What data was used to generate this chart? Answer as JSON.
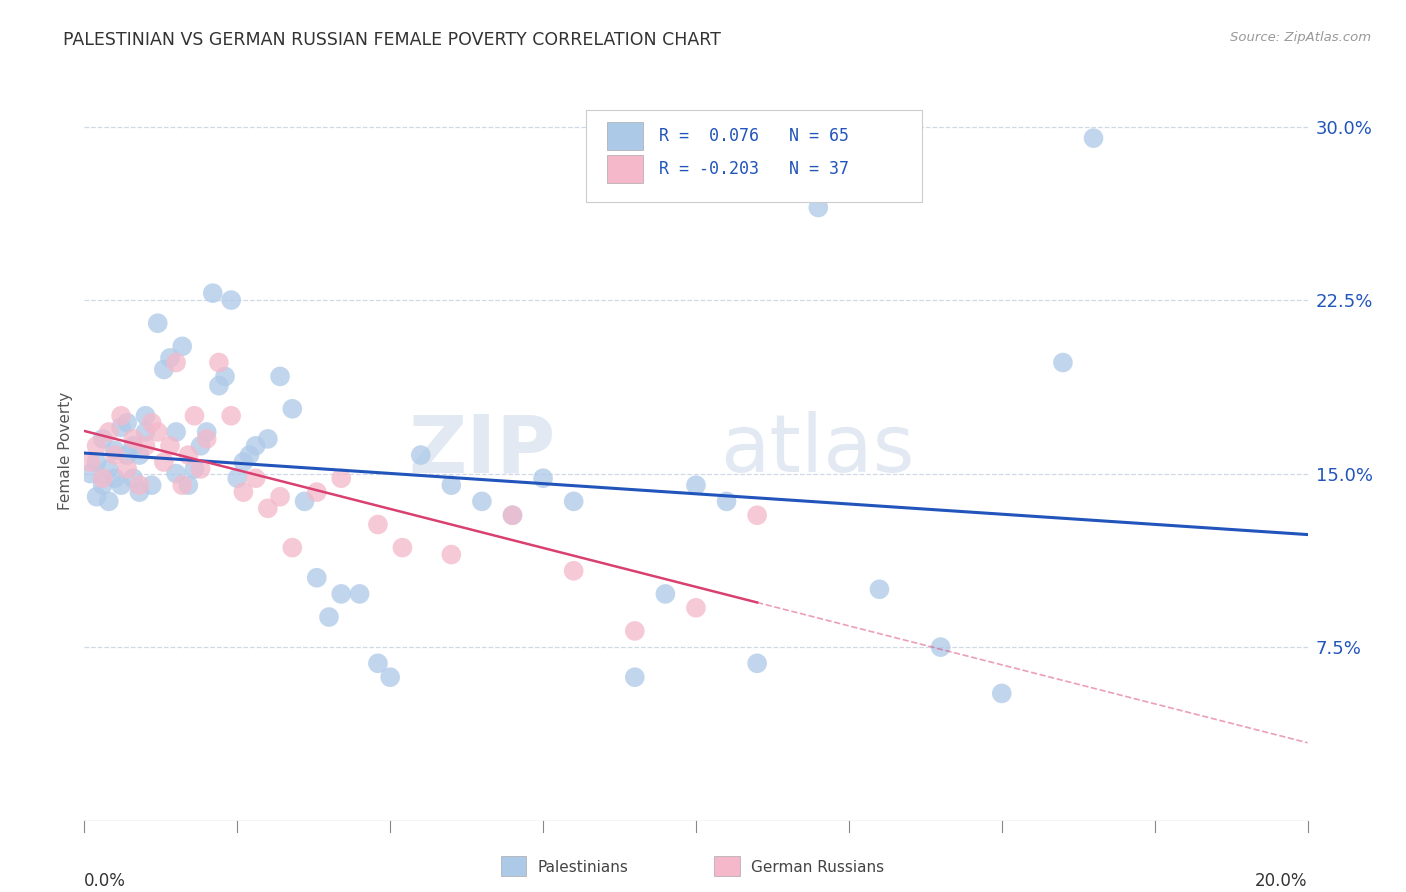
{
  "title": "PALESTINIAN VS GERMAN RUSSIAN FEMALE POVERTY CORRELATION CHART",
  "source": "Source: ZipAtlas.com",
  "ylabel": "Female Poverty",
  "yticks": [
    0.075,
    0.15,
    0.225,
    0.3
  ],
  "xlim": [
    0.0,
    0.2
  ],
  "ylim": [
    0.0,
    0.32
  ],
  "watermark": "ZIPatlas",
  "palestinian_color": "#adc9e8",
  "german_russian_color": "#f4b8ca",
  "line_color_blue": "#2255bb",
  "line_color_pink": "#d94070",
  "background_color": "#ffffff",
  "grid_color": "#d0d8e8",
  "pal_x": [
    0.001,
    0.002,
    0.002,
    0.003,
    0.003,
    0.004,
    0.004,
    0.005,
    0.005,
    0.006,
    0.006,
    0.007,
    0.007,
    0.008,
    0.008,
    0.009,
    0.009,
    0.01,
    0.01,
    0.011,
    0.012,
    0.013,
    0.014,
    0.015,
    0.015,
    0.016,
    0.017,
    0.018,
    0.019,
    0.02,
    0.021,
    0.022,
    0.023,
    0.024,
    0.025,
    0.026,
    0.027,
    0.028,
    0.03,
    0.032,
    0.034,
    0.036,
    0.038,
    0.04,
    0.042,
    0.045,
    0.048,
    0.05,
    0.055,
    0.06,
    0.065,
    0.07,
    0.075,
    0.08,
    0.09,
    0.095,
    0.1,
    0.105,
    0.11,
    0.12,
    0.13,
    0.14,
    0.15,
    0.16,
    0.165
  ],
  "pal_y": [
    0.15,
    0.155,
    0.14,
    0.165,
    0.145,
    0.152,
    0.138,
    0.16,
    0.148,
    0.17,
    0.145,
    0.158,
    0.172,
    0.162,
    0.148,
    0.142,
    0.158,
    0.168,
    0.175,
    0.145,
    0.215,
    0.195,
    0.2,
    0.15,
    0.168,
    0.205,
    0.145,
    0.152,
    0.162,
    0.168,
    0.228,
    0.188,
    0.192,
    0.225,
    0.148,
    0.155,
    0.158,
    0.162,
    0.165,
    0.192,
    0.178,
    0.138,
    0.105,
    0.088,
    0.098,
    0.098,
    0.068,
    0.062,
    0.158,
    0.145,
    0.138,
    0.132,
    0.148,
    0.138,
    0.062,
    0.098,
    0.145,
    0.138,
    0.068,
    0.265,
    0.1,
    0.075,
    0.055,
    0.198,
    0.295
  ],
  "grr_x": [
    0.001,
    0.002,
    0.003,
    0.004,
    0.005,
    0.006,
    0.007,
    0.008,
    0.009,
    0.01,
    0.011,
    0.012,
    0.013,
    0.014,
    0.015,
    0.016,
    0.017,
    0.018,
    0.019,
    0.02,
    0.022,
    0.024,
    0.026,
    0.028,
    0.03,
    0.032,
    0.034,
    0.038,
    0.042,
    0.048,
    0.052,
    0.06,
    0.07,
    0.08,
    0.09,
    0.1,
    0.11
  ],
  "grr_y": [
    0.155,
    0.162,
    0.148,
    0.168,
    0.158,
    0.175,
    0.152,
    0.165,
    0.145,
    0.162,
    0.172,
    0.168,
    0.155,
    0.162,
    0.198,
    0.145,
    0.158,
    0.175,
    0.152,
    0.165,
    0.198,
    0.175,
    0.142,
    0.148,
    0.135,
    0.14,
    0.118,
    0.142,
    0.148,
    0.128,
    0.118,
    0.115,
    0.132,
    0.108,
    0.082,
    0.092,
    0.132
  ]
}
